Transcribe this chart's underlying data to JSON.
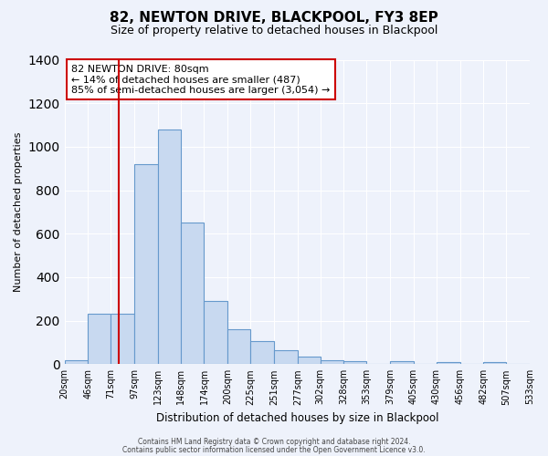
{
  "title": "82, NEWTON DRIVE, BLACKPOOL, FY3 8EP",
  "subtitle": "Size of property relative to detached houses in Blackpool",
  "xlabel": "Distribution of detached houses by size in Blackpool",
  "ylabel": "Number of detached properties",
  "bar_color": "#c8d9f0",
  "bar_edge_color": "#6699cc",
  "background_color": "#eef2fb",
  "bin_edges": [
    20,
    46,
    71,
    97,
    123,
    148,
    174,
    200,
    225,
    251,
    277,
    302,
    328,
    353,
    379,
    405,
    430,
    456,
    482,
    507,
    533
  ],
  "bin_labels": [
    "20sqm",
    "46sqm",
    "71sqm",
    "97sqm",
    "123sqm",
    "148sqm",
    "174sqm",
    "200sqm",
    "225sqm",
    "251sqm",
    "277sqm",
    "302sqm",
    "328sqm",
    "353sqm",
    "379sqm",
    "405sqm",
    "430sqm",
    "456sqm",
    "482sqm",
    "507sqm",
    "533sqm"
  ],
  "bar_heights": [
    20,
    230,
    230,
    920,
    1080,
    650,
    290,
    160,
    105,
    65,
    35,
    20,
    15,
    0,
    15,
    0,
    10,
    0,
    10,
    0
  ],
  "ylim": [
    0,
    1400
  ],
  "yticks": [
    0,
    200,
    400,
    600,
    800,
    1000,
    1200,
    1400
  ],
  "vline_x": 80,
  "vline_color": "#cc0000",
  "annotation_title": "82 NEWTON DRIVE: 80sqm",
  "annotation_line1": "← 14% of detached houses are smaller (487)",
  "annotation_line2": "85% of semi-detached houses are larger (3,054) →",
  "annotation_box_color": "#ffffff",
  "annotation_box_edge": "#cc0000",
  "footer1": "Contains HM Land Registry data © Crown copyright and database right 2024.",
  "footer2": "Contains public sector information licensed under the Open Government Licence v3.0."
}
